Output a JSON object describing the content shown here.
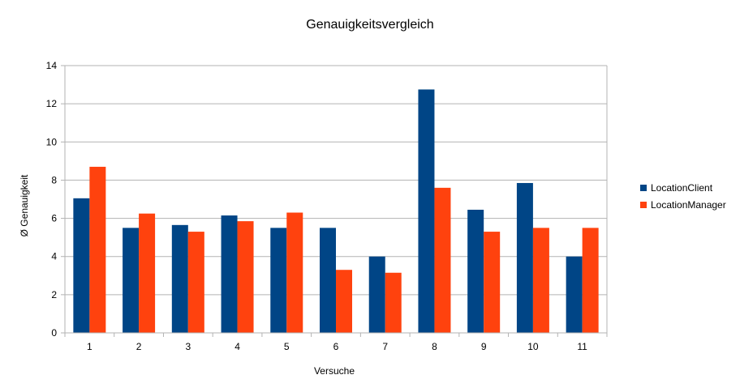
{
  "chart_data": {
    "type": "bar",
    "title": "Genauigkeitsvergleich",
    "xlabel": "Versuche",
    "ylabel": "Ø Genauigkeit",
    "categories": [
      "1",
      "2",
      "3",
      "4",
      "5",
      "6",
      "7",
      "8",
      "9",
      "10",
      "11"
    ],
    "series": [
      {
        "name": "LocationClient",
        "color": "#004586",
        "values": [
          7.05,
          5.5,
          5.65,
          6.15,
          5.5,
          5.5,
          4.0,
          12.75,
          6.45,
          7.85,
          4.0
        ]
      },
      {
        "name": "LocationManager",
        "color": "#ff420e",
        "values": [
          8.7,
          6.25,
          5.3,
          5.85,
          6.3,
          3.3,
          3.15,
          7.6,
          5.3,
          5.5,
          5.5
        ]
      }
    ],
    "ylim": [
      0,
      14
    ],
    "yticks": [
      0,
      2,
      4,
      6,
      8,
      10,
      12,
      14
    ],
    "grid": true,
    "legend": "right"
  }
}
